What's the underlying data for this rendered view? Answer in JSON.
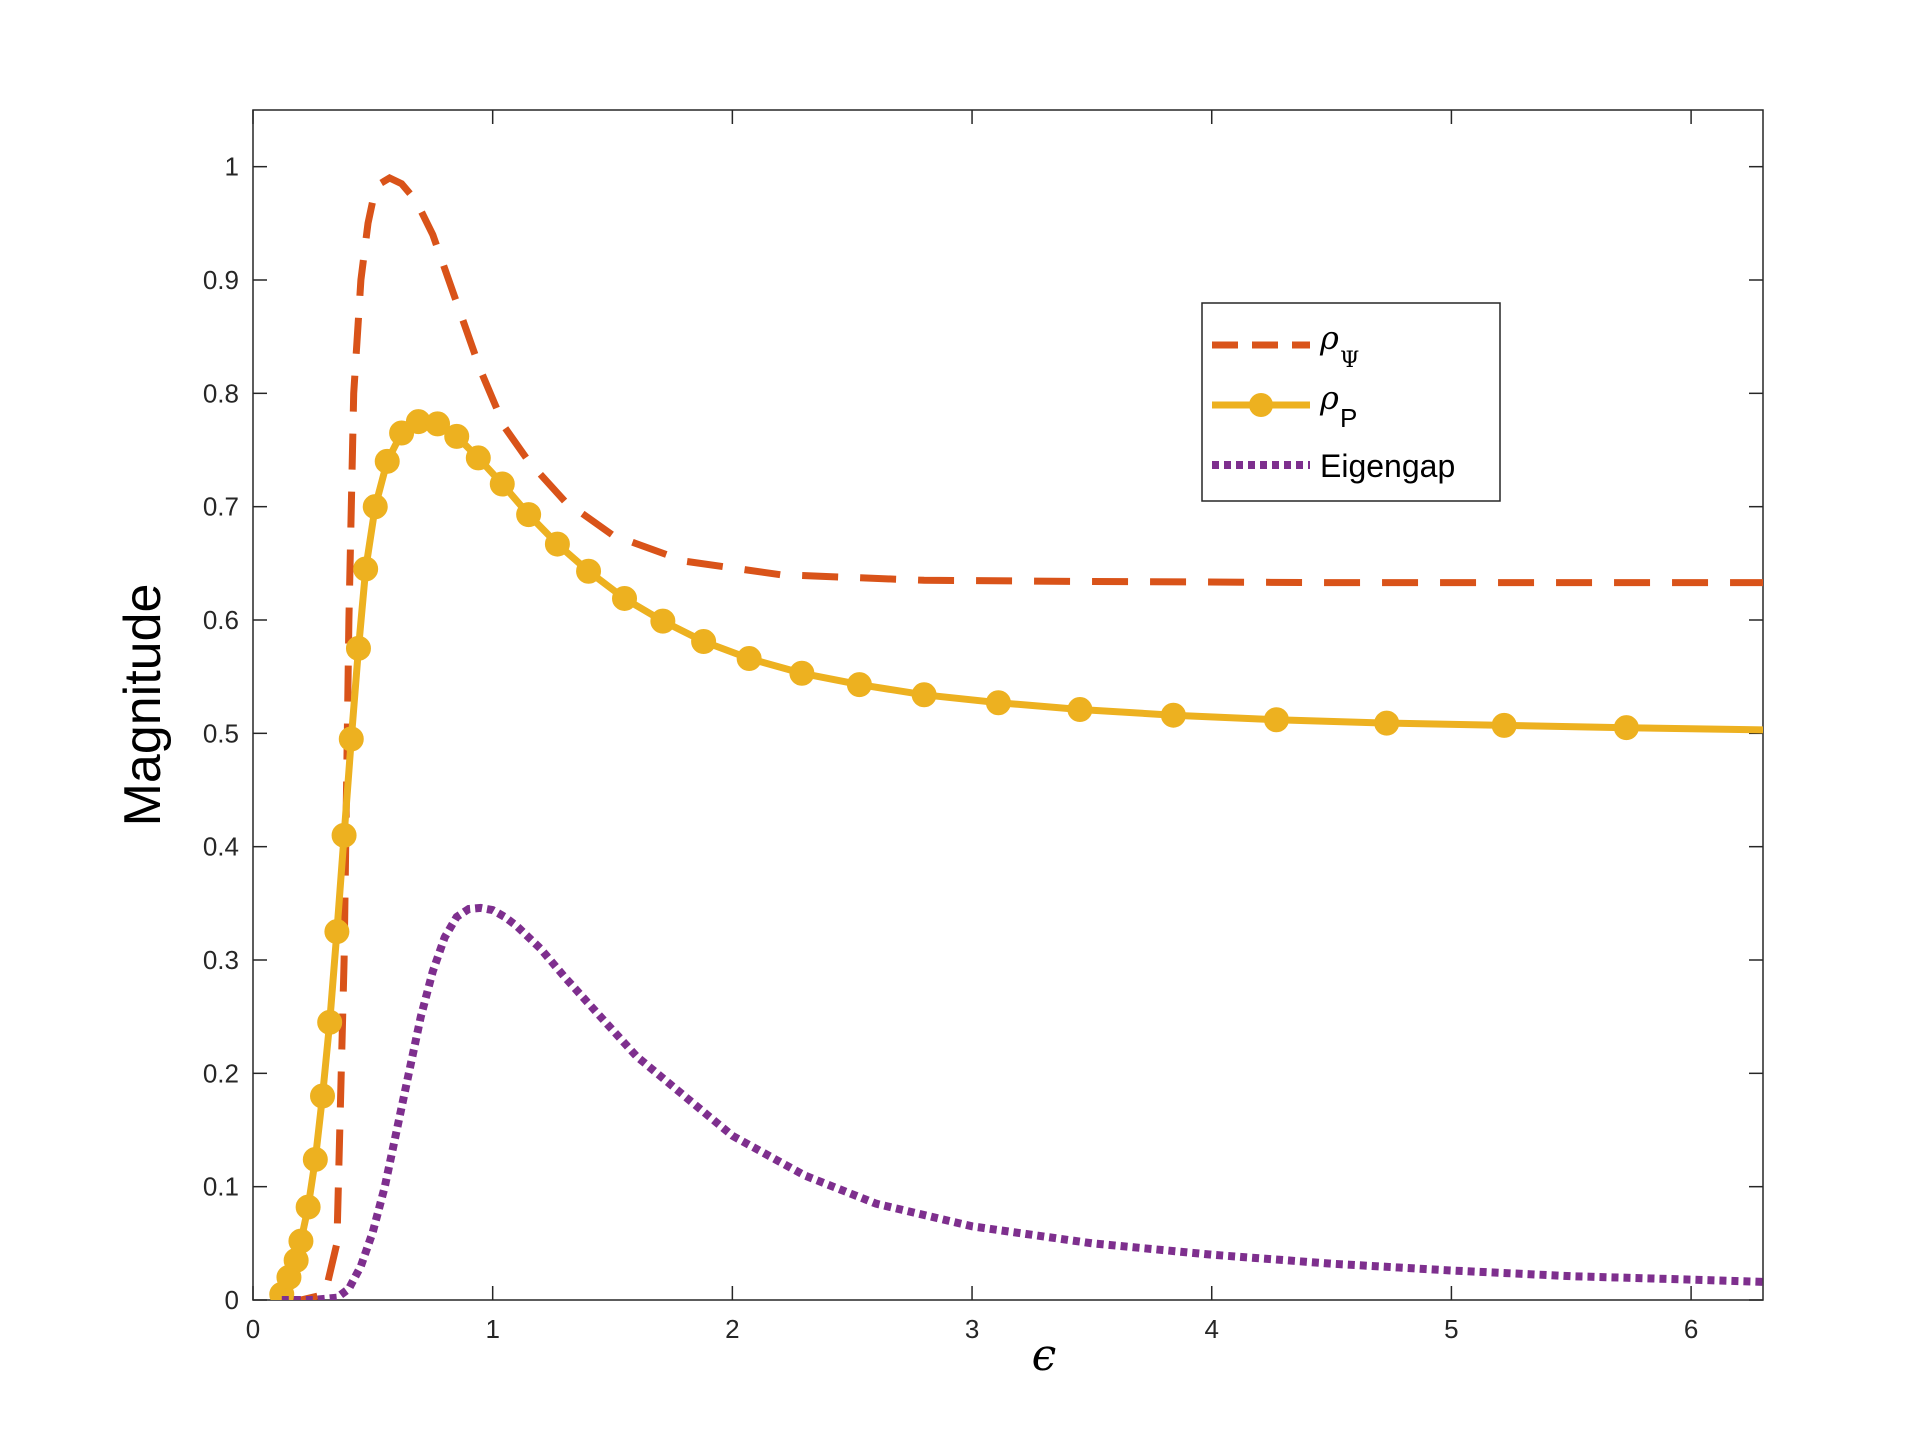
{
  "chart_data": {
    "type": "line",
    "xlabel": "ϵ",
    "ylabel": "Magnitude",
    "xlim": [
      0,
      6.3
    ],
    "ylim": [
      0,
      1.05
    ],
    "xticks": [
      "0",
      "1",
      "2",
      "3",
      "4",
      "5",
      "6"
    ],
    "yticks": [
      "0",
      "0.1",
      "0.2",
      "0.3",
      "0.4",
      "0.5",
      "0.6",
      "0.7",
      "0.8",
      "0.9",
      "1"
    ],
    "grid": false,
    "legend_position": "upper-right",
    "series": [
      {
        "name": "ρΨ",
        "legend": {
          "symbol": "ρ",
          "subscript": "Ψ"
        },
        "style": "dashed",
        "color": "#D95319",
        "x": [
          0.12,
          0.2,
          0.3,
          0.35,
          0.38,
          0.4,
          0.42,
          0.45,
          0.48,
          0.5,
          0.53,
          0.57,
          0.62,
          0.68,
          0.75,
          0.85,
          0.95,
          1.05,
          1.15,
          1.3,
          1.5,
          1.8,
          2.2,
          2.8,
          3.5,
          4.5,
          5.5,
          6.3
        ],
        "y": [
          0.0,
          0.0,
          0.005,
          0.05,
          0.3,
          0.6,
          0.8,
          0.9,
          0.95,
          0.97,
          0.985,
          0.99,
          0.985,
          0.97,
          0.94,
          0.88,
          0.82,
          0.77,
          0.74,
          0.705,
          0.675,
          0.652,
          0.64,
          0.635,
          0.634,
          0.633,
          0.633,
          0.633
        ]
      },
      {
        "name": "ρP",
        "legend": {
          "symbol": "ρ",
          "subscript": "P"
        },
        "style": "solid-markers",
        "color": "#EDB120",
        "x": [
          0.12,
          0.15,
          0.18,
          0.2,
          0.23,
          0.26,
          0.29,
          0.32,
          0.35,
          0.38,
          0.41,
          0.44,
          0.47,
          0.51,
          0.56,
          0.62,
          0.69,
          0.77,
          0.85,
          0.94,
          1.04,
          1.15,
          1.27,
          1.4,
          1.55,
          1.71,
          1.88,
          2.07,
          2.29,
          2.53,
          2.8,
          3.11,
          3.45,
          3.84,
          4.27,
          4.73,
          5.22,
          5.73,
          6.3
        ],
        "y": [
          0.005,
          0.02,
          0.035,
          0.052,
          0.082,
          0.124,
          0.18,
          0.245,
          0.325,
          0.41,
          0.495,
          0.575,
          0.645,
          0.7,
          0.74,
          0.765,
          0.775,
          0.773,
          0.762,
          0.743,
          0.72,
          0.693,
          0.667,
          0.643,
          0.619,
          0.599,
          0.581,
          0.566,
          0.553,
          0.543,
          0.534,
          0.527,
          0.521,
          0.516,
          0.512,
          0.509,
          0.507,
          0.505,
          0.503
        ]
      },
      {
        "name": "Eigengap",
        "legend": {
          "symbol": "",
          "subscript": "",
          "text": "Eigengap"
        },
        "style": "dotted",
        "color": "#7E2F8E",
        "x": [
          0.12,
          0.25,
          0.35,
          0.4,
          0.45,
          0.5,
          0.55,
          0.6,
          0.65,
          0.7,
          0.75,
          0.8,
          0.85,
          0.9,
          0.95,
          1.0,
          1.05,
          1.1,
          1.2,
          1.3,
          1.45,
          1.6,
          1.8,
          2.0,
          2.3,
          2.6,
          3.0,
          3.5,
          4.0,
          4.5,
          5.0,
          5.5,
          6.0,
          6.3
        ],
        "y": [
          0.0,
          0.0,
          0.002,
          0.01,
          0.03,
          0.06,
          0.1,
          0.15,
          0.2,
          0.25,
          0.29,
          0.32,
          0.338,
          0.345,
          0.346,
          0.344,
          0.338,
          0.33,
          0.31,
          0.285,
          0.25,
          0.215,
          0.18,
          0.145,
          0.11,
          0.085,
          0.065,
          0.05,
          0.04,
          0.032,
          0.026,
          0.021,
          0.018,
          0.016
        ]
      }
    ]
  }
}
